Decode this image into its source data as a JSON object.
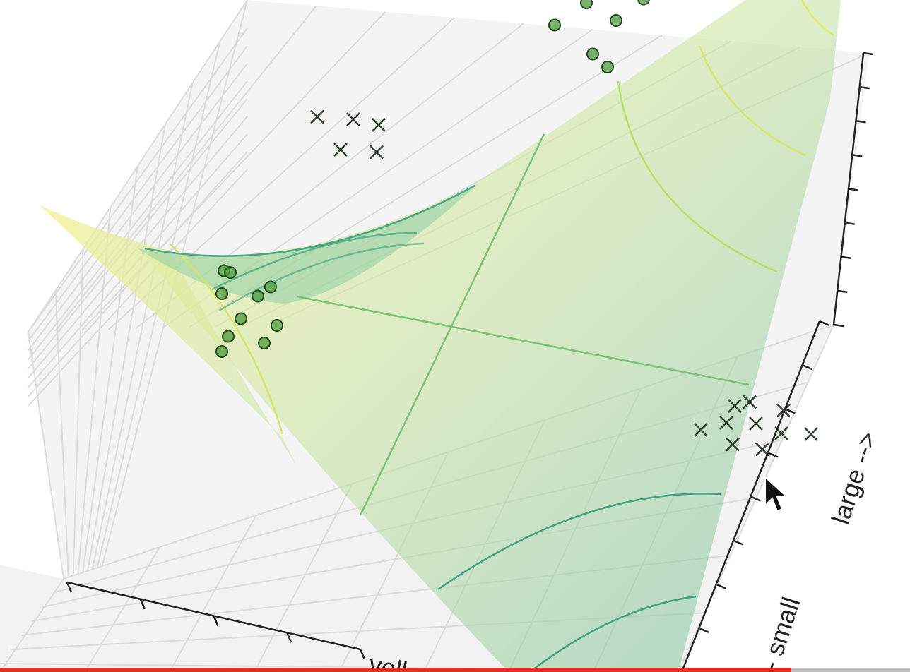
{
  "chart_data": {
    "type": "scatter",
    "projection": "3d",
    "title": "",
    "grid": true,
    "surface": {
      "shape": "saddle",
      "colormap": [
        "#f6f69a",
        "#cfe6a8",
        "#9fd3a3",
        "#7cc0a6"
      ]
    },
    "axis_labels": {
      "y": {
        "lines": [
          "- small",
          "large -->"
        ]
      },
      "x": {
        "text": "yellow -->"
      }
    },
    "series": [
      {
        "marker": "circle",
        "color": "#4f9a3e",
        "points": [
          [
            -2.1,
            0.2,
            1.1
          ],
          [
            -1.9,
            0.4,
            1.0
          ],
          [
            -1.8,
            0.1,
            0.9
          ],
          [
            -1.7,
            0.5,
            1.2
          ],
          [
            -2.0,
            0.6,
            1.3
          ],
          [
            -1.6,
            0.3,
            0.8
          ],
          [
            -2.2,
            0.1,
            1.0
          ],
          [
            -1.5,
            0.7,
            0.9
          ],
          [
            -1.9,
            0.8,
            1.4
          ],
          [
            -1.8,
            0.9,
            1.1
          ],
          [
            2.0,
            2.0,
            2.6
          ],
          [
            2.2,
            1.8,
            2.4
          ],
          [
            1.8,
            2.3,
            2.9
          ],
          [
            2.4,
            2.1,
            2.7
          ],
          [
            1.9,
            1.6,
            2.2
          ],
          [
            2.1,
            2.4,
            3.0
          ],
          [
            2.5,
            1.9,
            2.5
          ],
          [
            1.7,
            2.0,
            2.3
          ],
          [
            2.3,
            2.6,
            3.2
          ],
          [
            2.0,
            1.5,
            2.0
          ]
        ]
      },
      {
        "marker": "x",
        "color": "#2d3e2d",
        "points": [
          [
            -0.4,
            1.8,
            1.3
          ],
          [
            -0.2,
            2.0,
            1.5
          ],
          [
            0.0,
            1.9,
            1.4
          ],
          [
            -0.5,
            2.1,
            1.6
          ],
          [
            -0.1,
            1.7,
            1.2
          ],
          [
            1.8,
            -1.8,
            -0.2
          ],
          [
            2.0,
            -2.0,
            0.0
          ],
          [
            2.1,
            -1.6,
            -0.3
          ],
          [
            1.7,
            -2.2,
            0.1
          ],
          [
            2.3,
            -1.9,
            -0.1
          ],
          [
            1.9,
            -2.4,
            0.2
          ],
          [
            2.2,
            -2.1,
            -0.2
          ],
          [
            1.6,
            -1.7,
            -0.4
          ],
          [
            2.4,
            -2.3,
            0.0
          ],
          [
            2.0,
            -1.5,
            -0.5
          ]
        ]
      }
    ]
  }
}
